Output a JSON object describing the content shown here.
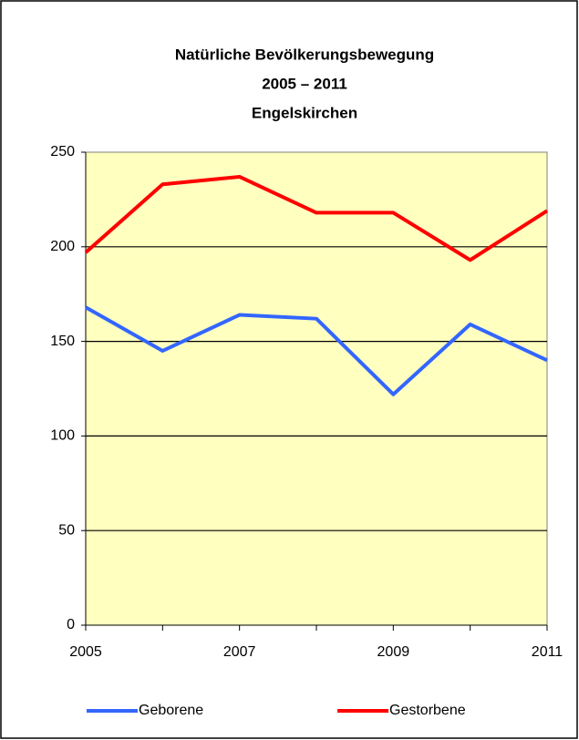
{
  "chart_data": {
    "type": "line",
    "title": [
      "Natürliche Bevölkerungsbewegung",
      "2005 – 2011",
      "Engelskirchen"
    ],
    "categories": [
      "2005",
      null,
      "2007",
      null,
      "2009",
      null,
      "2011"
    ],
    "series": [
      {
        "name": "Geborene",
        "color": "#3366ff",
        "values": [
          168,
          145,
          164,
          162,
          122,
          159,
          140
        ]
      },
      {
        "name": "Gestorbene",
        "color": "#ff0000",
        "values": [
          197,
          233,
          237,
          218,
          218,
          193,
          219
        ]
      }
    ],
    "ylim": [
      0,
      250
    ],
    "yticks": [
      0,
      50,
      100,
      150,
      200,
      250
    ],
    "grid": true,
    "legend": "bottom",
    "background": "#ffffc0"
  }
}
